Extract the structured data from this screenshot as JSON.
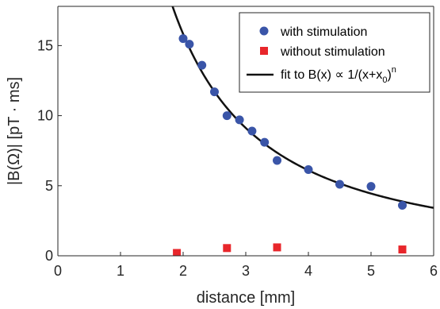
{
  "chart_data": {
    "type": "scatter",
    "xlabel": "distance [mm]",
    "ylabel": "|B(Ω)| [pT · ms]",
    "xlim": [
      0,
      6
    ],
    "ylim": [
      0,
      17.8
    ],
    "xticks": [
      "0",
      "1",
      "2",
      "3",
      "4",
      "5",
      "6"
    ],
    "yticks": [
      "0",
      "5",
      "10",
      "15"
    ],
    "grid": false,
    "legend_position": "top-right",
    "series": [
      {
        "name": "with stimulation",
        "marker": "circle",
        "color": "#3a55a8",
        "x": [
          2.0,
          2.1,
          2.3,
          2.5,
          2.7,
          2.9,
          3.1,
          3.3,
          3.5,
          4.0,
          4.5,
          5.0,
          5.5
        ],
        "y": [
          15.5,
          15.1,
          13.6,
          11.7,
          10.0,
          9.7,
          8.9,
          8.1,
          6.8,
          6.15,
          5.1,
          4.95,
          3.6
        ]
      },
      {
        "name": "without stimulation",
        "marker": "square",
        "color": "#e8262b",
        "x": [
          1.9,
          2.7,
          3.5,
          5.5
        ],
        "y": [
          0.2,
          0.55,
          0.6,
          0.45
        ]
      }
    ],
    "fit": {
      "label_main": "fit to B(x) ∝ 1/(x+x",
      "label_sub": "0",
      "label_close": ")",
      "label_sup": "n",
      "color": "#111111"
    }
  }
}
